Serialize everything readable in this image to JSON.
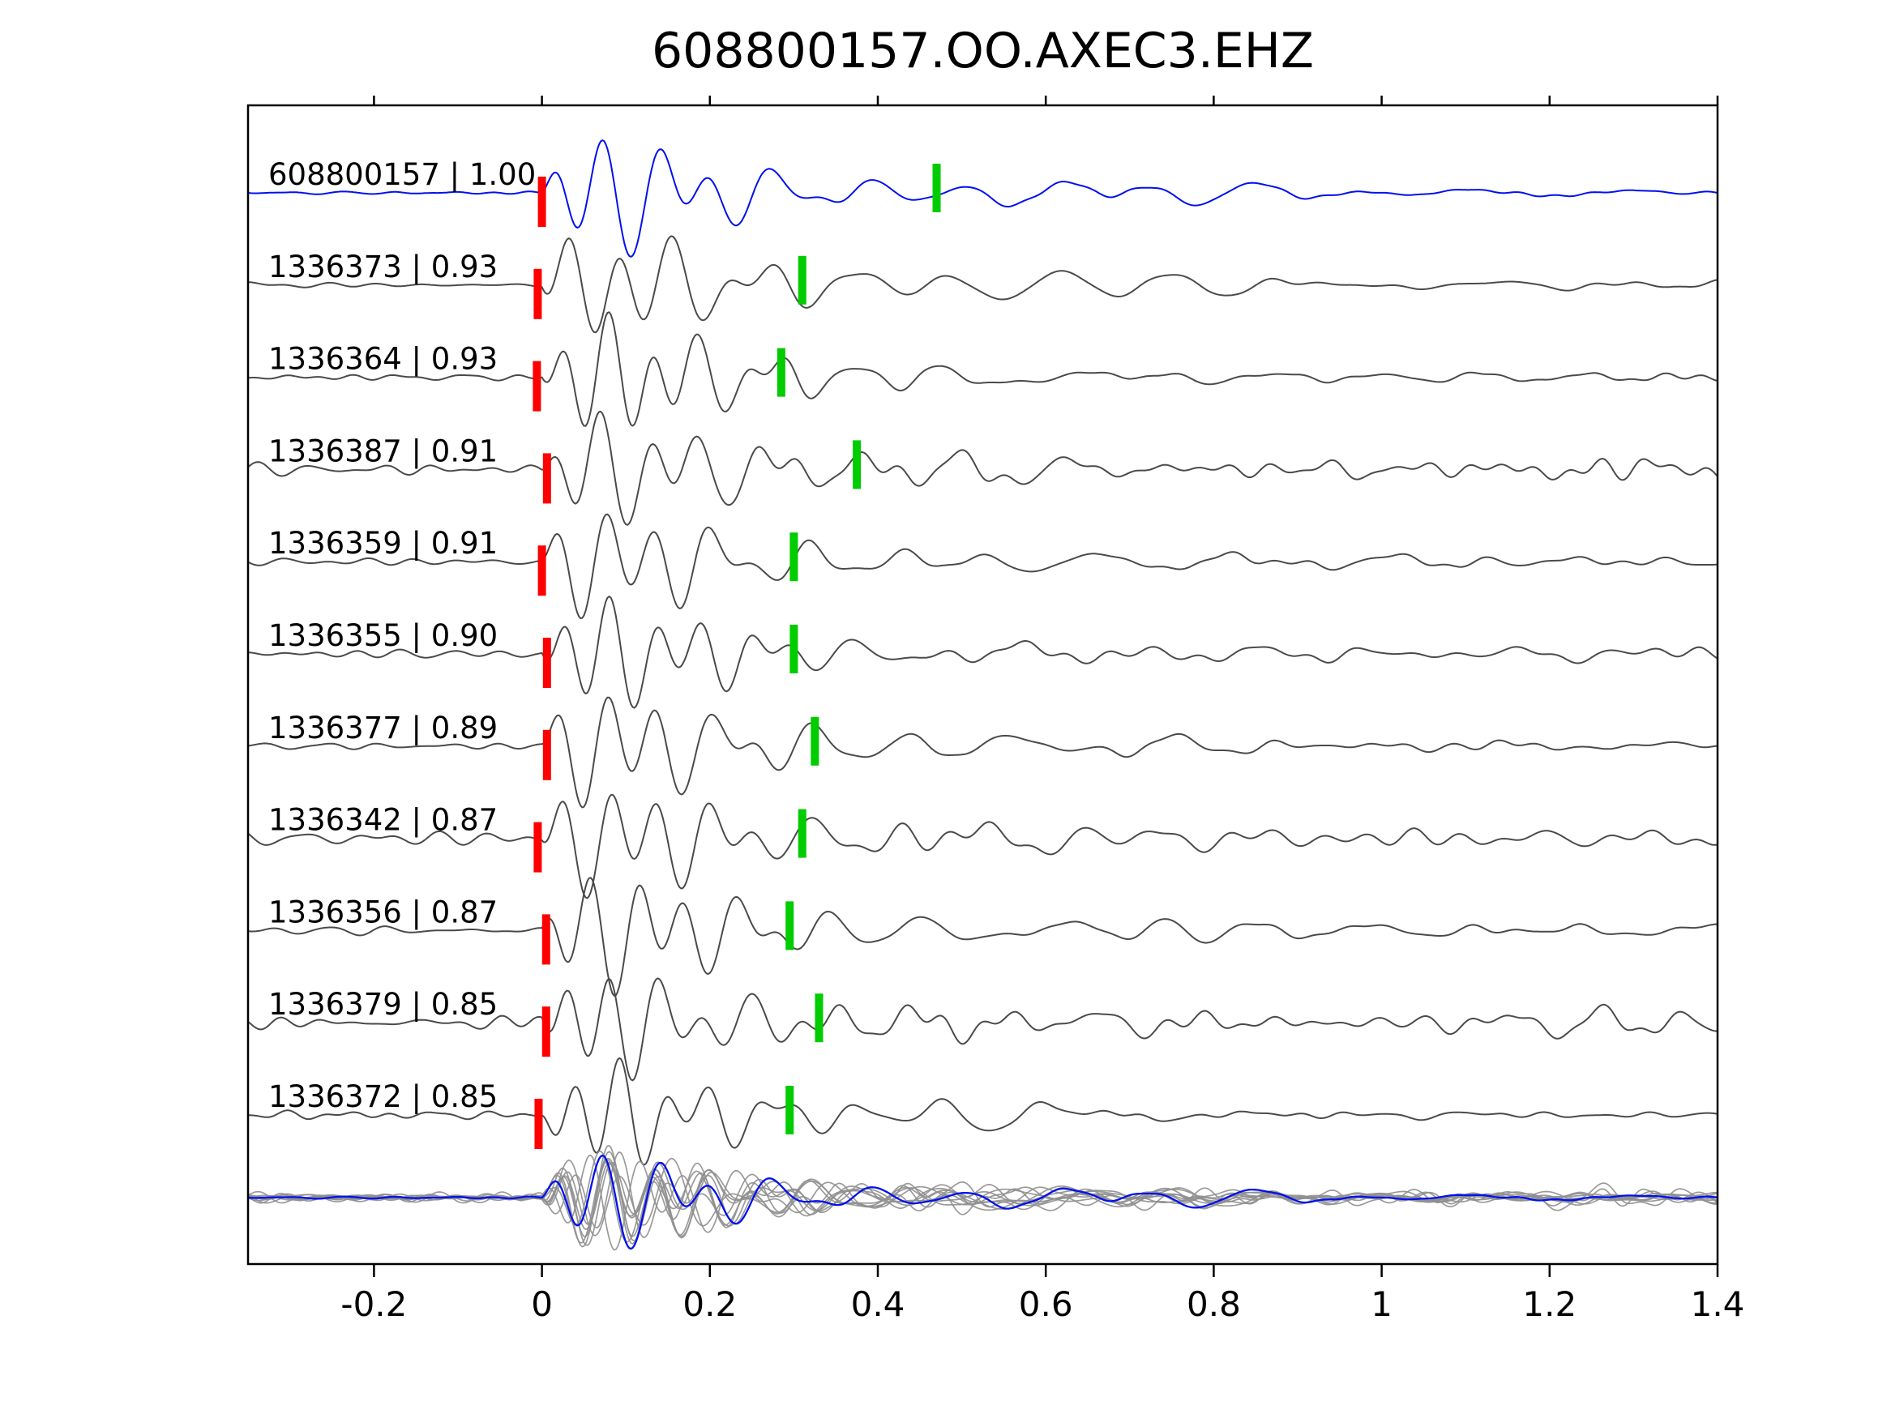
{
  "chart_data": {
    "type": "line",
    "title": "608800157.OO.AXEC3.EHZ",
    "xlabel": "",
    "ylabel": "",
    "xlim": [
      -0.35,
      1.4
    ],
    "x_ticks": [
      -0.2,
      0,
      0.2,
      0.4,
      0.6,
      0.8,
      1,
      1.2,
      1.4
    ],
    "x_tick_labels": [
      "-0.2",
      "0",
      "0.2",
      "0.4",
      "0.6",
      "0.8",
      "1",
      "1.2",
      "1.4"
    ],
    "grid": false,
    "legend": "none",
    "colors": {
      "reference_trace": "#0010ee",
      "member_trace": "#4a4a4a",
      "overlay_gray": "#8f8f8f",
      "pick_red": "#ff0000",
      "pick_green": "#00cc00",
      "axis": "#000000",
      "text": "#000000",
      "background": "#ffffff"
    },
    "traces": [
      {
        "label": "608800157 | 1.00",
        "id": "608800157",
        "similarity": 1.0,
        "is_reference": true,
        "red_pick_s": 0.0,
        "green_pick_s": 0.47,
        "pre_noise": 0.03,
        "amp": 1.0,
        "late": 0.0
      },
      {
        "label": "1336373 | 0.93",
        "id": "1336373",
        "similarity": 0.93,
        "is_reference": false,
        "red_pick_s": -0.005,
        "green_pick_s": 0.31,
        "pre_noise": 0.05,
        "amp": 0.95,
        "late": 0.0
      },
      {
        "label": "1336364 | 0.93",
        "id": "1336364",
        "similarity": 0.93,
        "is_reference": false,
        "red_pick_s": -0.006,
        "green_pick_s": 0.285,
        "pre_noise": 0.05,
        "amp": 1.0,
        "late": 0.0
      },
      {
        "label": "1336387 | 0.91",
        "id": "1336387",
        "similarity": 0.91,
        "is_reference": false,
        "red_pick_s": 0.006,
        "green_pick_s": 0.375,
        "pre_noise": 0.14,
        "amp": 1.0,
        "late": 0.0
      },
      {
        "label": "1336359 | 0.91",
        "id": "1336359",
        "similarity": 0.91,
        "is_reference": false,
        "red_pick_s": 0.0,
        "green_pick_s": 0.3,
        "pre_noise": 0.06,
        "amp": 0.95,
        "late": 0.0
      },
      {
        "label": "1336355 | 0.90",
        "id": "1336355",
        "similarity": 0.9,
        "is_reference": false,
        "red_pick_s": 0.006,
        "green_pick_s": 0.3,
        "pre_noise": 0.09,
        "amp": 0.9,
        "late": 0.0
      },
      {
        "label": "1336377 | 0.89",
        "id": "1336377",
        "similarity": 0.89,
        "is_reference": false,
        "red_pick_s": 0.006,
        "green_pick_s": 0.325,
        "pre_noise": 0.06,
        "amp": 1.0,
        "late": 0.0
      },
      {
        "label": "1336342 | 0.87",
        "id": "1336342",
        "similarity": 0.87,
        "is_reference": false,
        "red_pick_s": -0.005,
        "green_pick_s": 0.31,
        "pre_noise": 0.13,
        "amp": 0.95,
        "late": 0.0
      },
      {
        "label": "1336356 | 0.87",
        "id": "1336356",
        "similarity": 0.87,
        "is_reference": false,
        "red_pick_s": 0.005,
        "green_pick_s": 0.295,
        "pre_noise": 0.07,
        "amp": 1.0,
        "late": 0.0
      },
      {
        "label": "1336379 | 0.85",
        "id": "1336379",
        "similarity": 0.85,
        "is_reference": false,
        "red_pick_s": 0.005,
        "green_pick_s": 0.33,
        "pre_noise": 0.15,
        "amp": 0.95,
        "late": 0.28
      },
      {
        "label": "1336372 | 0.85",
        "id": "1336372",
        "similarity": 0.85,
        "is_reference": false,
        "red_pick_s": -0.004,
        "green_pick_s": 0.295,
        "pre_noise": 0.06,
        "amp": 0.9,
        "late": 0.0
      }
    ],
    "overlay_row": {
      "description": "all member traces (gray) stacked with reference trace (blue), aligned at pick time 0",
      "amp": 0.8
    }
  }
}
